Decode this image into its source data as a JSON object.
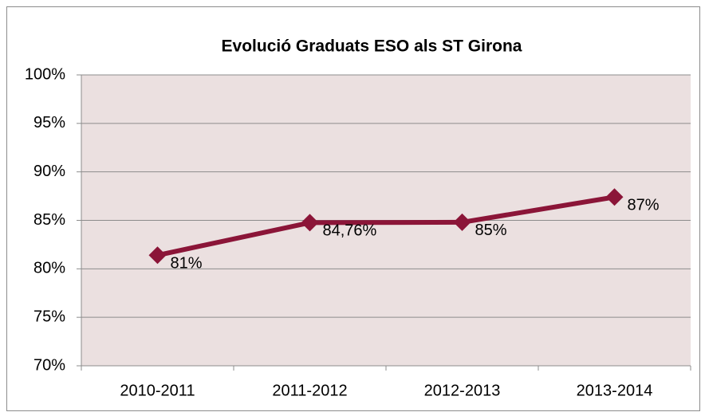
{
  "chart_data": {
    "type": "line",
    "title": "Evolució Graduats ESO als ST Girona",
    "categories": [
      "2010-2011",
      "2011-2012",
      "2012-2013",
      "2013-2014"
    ],
    "series": [
      {
        "name": "Graduats ESO",
        "color": "#8b1538",
        "values": [
          81.4,
          84.76,
          84.8,
          87.4
        ],
        "value_labels": [
          "81%",
          "84,76%",
          "85%",
          "87%"
        ]
      }
    ],
    "ylim": [
      70,
      100
    ],
    "yticks": [
      {
        "value": 70,
        "label": "70%"
      },
      {
        "value": 75,
        "label": "75%"
      },
      {
        "value": 80,
        "label": "80%"
      },
      {
        "value": 85,
        "label": "85%"
      },
      {
        "value": 90,
        "label": "90%"
      },
      {
        "value": 95,
        "label": "95%"
      },
      {
        "value": 100,
        "label": "100%"
      }
    ],
    "grid": true,
    "plot_background": "#ebe0e0",
    "title_color": "#c0102a"
  }
}
